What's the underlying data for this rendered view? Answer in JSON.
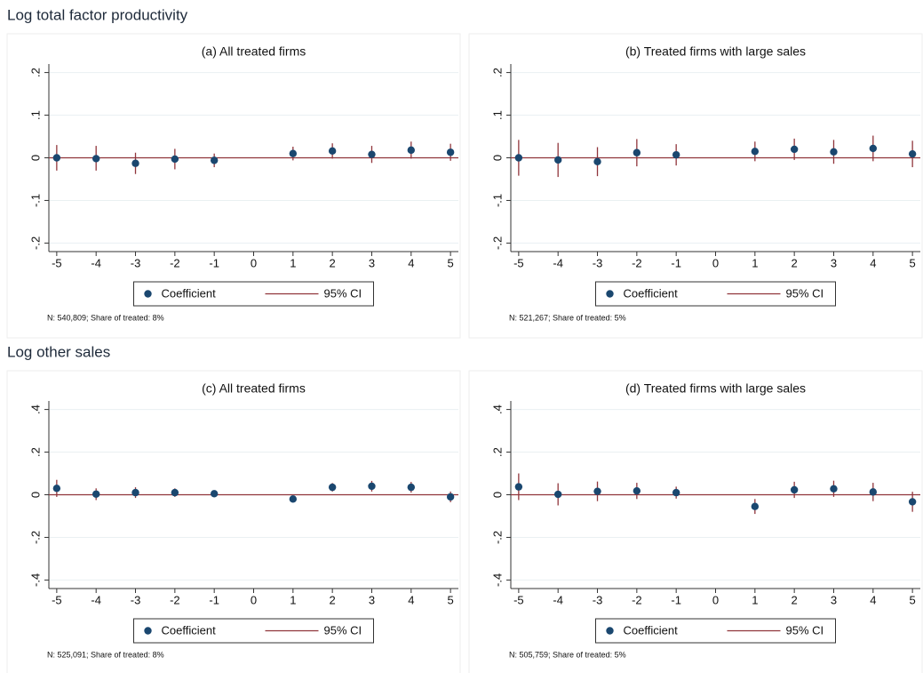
{
  "sections": [
    "Log total factor productivity",
    "Log other sales"
  ],
  "chart_data": [
    {
      "type": "errorbar",
      "title": "(a) All treated firms",
      "note": "N:  540,809; Share of treated:   8%",
      "x": [
        -5,
        -4,
        -3,
        -2,
        -1,
        1,
        2,
        3,
        4,
        5
      ],
      "series": [
        {
          "name": "Coefficient",
          "color": "#1a476f",
          "values": [
            0,
            -0.002,
            -0.013,
            -0.003,
            -0.006,
            0.01,
            0.016,
            0.008,
            0.018,
            0.013
          ]
        },
        {
          "name": "95% CI",
          "color": "#90353b",
          "lower": [
            -0.03,
            -0.03,
            -0.038,
            -0.027,
            -0.022,
            -0.006,
            -0.002,
            -0.012,
            -0.002,
            -0.007
          ],
          "upper": [
            0.03,
            0.028,
            0.012,
            0.021,
            0.01,
            0.026,
            0.034,
            0.028,
            0.038,
            0.033
          ]
        }
      ],
      "xlim": [
        -5.2,
        5.2
      ],
      "xticks": [
        -5,
        -4,
        -3,
        -2,
        -1,
        0,
        1,
        2,
        3,
        4,
        5
      ],
      "ylim": [
        -0.22,
        0.22
      ],
      "yticks": [
        {
          "value": -0.2,
          "label": "-.2"
        },
        {
          "value": -0.1,
          "label": "-.1"
        },
        0,
        {
          "value": 0.1,
          "label": ".1"
        },
        {
          "value": 0.2,
          "label": ".2"
        }
      ],
      "yline": 0,
      "grid": true
    },
    {
      "type": "errorbar",
      "title": "(b) Treated firms with large sales",
      "note": "N:  521,267; Share of treated:   5%",
      "x": [
        -5,
        -4,
        -3,
        -2,
        -1,
        1,
        2,
        3,
        4,
        5
      ],
      "series": [
        {
          "name": "Coefficient",
          "color": "#1a476f",
          "values": [
            0,
            -0.005,
            -0.009,
            0.012,
            0.007,
            0.015,
            0.02,
            0.014,
            0.022,
            0.009
          ]
        },
        {
          "name": "95% CI",
          "color": "#90353b",
          "lower": [
            -0.042,
            -0.045,
            -0.043,
            -0.02,
            -0.018,
            -0.008,
            -0.005,
            -0.014,
            -0.008,
            -0.022
          ],
          "upper": [
            0.042,
            0.035,
            0.025,
            0.044,
            0.032,
            0.038,
            0.045,
            0.042,
            0.052,
            0.04
          ]
        }
      ],
      "xlim": [
        -5.2,
        5.2
      ],
      "xticks": [
        -5,
        -4,
        -3,
        -2,
        -1,
        0,
        1,
        2,
        3,
        4,
        5
      ],
      "ylim": [
        -0.22,
        0.22
      ],
      "yticks": [
        {
          "value": -0.2,
          "label": "-.2"
        },
        {
          "value": -0.1,
          "label": "-.1"
        },
        0,
        {
          "value": 0.1,
          "label": ".1"
        },
        {
          "value": 0.2,
          "label": ".2"
        }
      ],
      "yline": 0,
      "grid": true
    },
    {
      "type": "errorbar",
      "title": "(c) All treated firms",
      "note": "N:  525,091; Share of treated:   8%",
      "x": [
        -5,
        -4,
        -3,
        -2,
        -1,
        1,
        2,
        3,
        4,
        5
      ],
      "series": [
        {
          "name": "Coefficient",
          "color": "#1a476f",
          "values": [
            0.03,
            0.003,
            0.01,
            0.01,
            0.005,
            -0.02,
            0.035,
            0.04,
            0.035,
            -0.01
          ]
        },
        {
          "name": "95% CI",
          "color": "#90353b",
          "lower": [
            -0.01,
            -0.025,
            -0.015,
            -0.01,
            -0.008,
            -0.035,
            0.015,
            0.015,
            0.01,
            -0.035
          ],
          "upper": [
            0.07,
            0.03,
            0.035,
            0.03,
            0.018,
            -0.005,
            0.055,
            0.065,
            0.06,
            0.015
          ]
        }
      ],
      "xlim": [
        -5.2,
        5.2
      ],
      "xticks": [
        -5,
        -4,
        -3,
        -2,
        -1,
        0,
        1,
        2,
        3,
        4,
        5
      ],
      "ylim": [
        -0.44,
        0.44
      ],
      "yticks": [
        {
          "value": -0.4,
          "label": "-.4"
        },
        {
          "value": -0.2,
          "label": "-.2"
        },
        0,
        {
          "value": 0.2,
          "label": ".2"
        },
        {
          "value": 0.4,
          "label": ".4"
        }
      ],
      "yline": 0,
      "grid": true
    },
    {
      "type": "errorbar",
      "title": "(d) Treated firms with large sales",
      "note": "N:  505,759; Share of treated:   5%",
      "x": [
        -5,
        -4,
        -3,
        -2,
        -1,
        1,
        2,
        3,
        4,
        5
      ],
      "series": [
        {
          "name": "Coefficient",
          "color": "#1a476f",
          "values": [
            0.037,
            0.002,
            0.016,
            0.018,
            0.01,
            -0.055,
            0.023,
            0.028,
            0.013,
            -0.033
          ]
        },
        {
          "name": "95% CI",
          "color": "#90353b",
          "lower": [
            -0.025,
            -0.05,
            -0.03,
            -0.02,
            -0.018,
            -0.09,
            -0.015,
            -0.01,
            -0.03,
            -0.08
          ],
          "upper": [
            0.1,
            0.054,
            0.062,
            0.056,
            0.038,
            -0.02,
            0.061,
            0.066,
            0.056,
            0.014
          ]
        }
      ],
      "xlim": [
        -5.2,
        5.2
      ],
      "xticks": [
        -5,
        -4,
        -3,
        -2,
        -1,
        0,
        1,
        2,
        3,
        4,
        5
      ],
      "ylim": [
        -0.44,
        0.44
      ],
      "yticks": [
        {
          "value": -0.4,
          "label": "-.4"
        },
        {
          "value": -0.2,
          "label": "-.2"
        },
        0,
        {
          "value": 0.2,
          "label": ".2"
        },
        {
          "value": 0.4,
          "label": ".4"
        }
      ],
      "yline": 0,
      "grid": true
    }
  ]
}
